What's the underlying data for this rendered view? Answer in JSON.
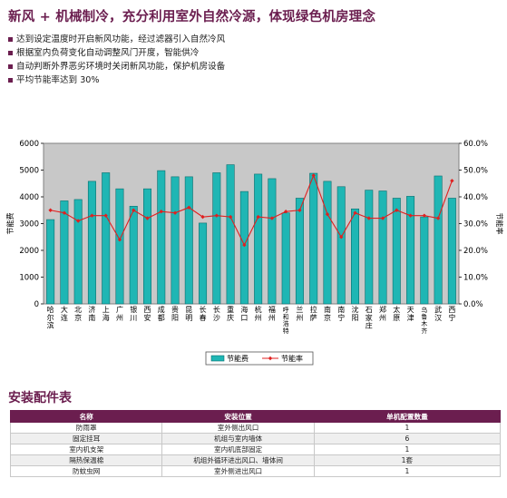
{
  "headline": "新风 + 机械制冷，充分利用室外自然冷源，体现绿色机房理念",
  "bullets": [
    "达到设定温度时开启新风功能，经过滤器引入自然冷风",
    "根据室内负荷变化自动调整风门开度，智能供冷",
    "自动判断外界恶劣环境时关闭新风功能，保护机房设备",
    "平均节能率达到 30%"
  ],
  "colors": {
    "accent": "#6b1e4f",
    "bar": "#1fb6b4",
    "bar_dark": "#0b6f6e",
    "line": "#e02020",
    "plot_bg": "#c8c8c8"
  },
  "chart_data": {
    "type": "bar",
    "categories": [
      "哈尔滨",
      "大连",
      "北京",
      "济南",
      "上海",
      "广州",
      "银川",
      "西安",
      "成都",
      "贵阳",
      "昆明",
      "长春",
      "长沙",
      "重庆",
      "海口",
      "杭州",
      "福州",
      "呼和浩特",
      "兰州",
      "拉萨",
      "南京",
      "南宁",
      "沈阳",
      "石家庄",
      "郑州",
      "太原",
      "天津",
      "乌鲁木齐",
      "武汉",
      "西宁"
    ],
    "series": [
      {
        "name": "节能费",
        "axis": "left",
        "values": [
          3150,
          3850,
          3900,
          4580,
          4900,
          4300,
          3650,
          4300,
          4980,
          4750,
          4750,
          3020,
          4900,
          5200,
          4200,
          4850,
          4680,
          3400,
          3950,
          4880,
          4580,
          4380,
          3550,
          4250,
          4220,
          3950,
          4020,
          3250,
          4780,
          3950
        ]
      },
      {
        "name": "节能率",
        "axis": "right",
        "values": [
          0.35,
          0.34,
          0.31,
          0.33,
          0.33,
          0.24,
          0.35,
          0.32,
          0.345,
          0.34,
          0.36,
          0.325,
          0.33,
          0.325,
          0.22,
          0.325,
          0.32,
          0.345,
          0.35,
          0.48,
          0.335,
          0.25,
          0.34,
          0.32,
          0.32,
          0.35,
          0.33,
          0.33,
          0.32,
          0.46
        ]
      }
    ],
    "ylabel": "节能费",
    "y2label": "节能率",
    "ylim": [
      0,
      6000
    ],
    "yticks": [
      "0",
      "1000",
      "2000",
      "3000",
      "4000",
      "5000",
      "6000"
    ],
    "y2lim": [
      0,
      0.6
    ],
    "y2ticks": [
      "0.0%",
      "10.0%",
      "20.0%",
      "30.0%",
      "40.0%",
      "50.0%",
      "60.0%"
    ],
    "grid": false,
    "legend": "bottom"
  },
  "parts_section": {
    "title": "安装配件表",
    "headers": [
      "名称",
      "安装位置",
      "单机配置数量"
    ],
    "rows": [
      [
        "防雨罩",
        "室外侧出风口",
        "1"
      ],
      [
        "固定挂耳",
        "机组与室内墙体",
        "6"
      ],
      [
        "室内机支架",
        "室内机底部固定",
        "1"
      ],
      [
        "隔热保温棉",
        "机组外循环进出风口、墙体间",
        "1套"
      ],
      [
        "防蚊虫网",
        "室外侧进出风口",
        "1"
      ]
    ]
  }
}
